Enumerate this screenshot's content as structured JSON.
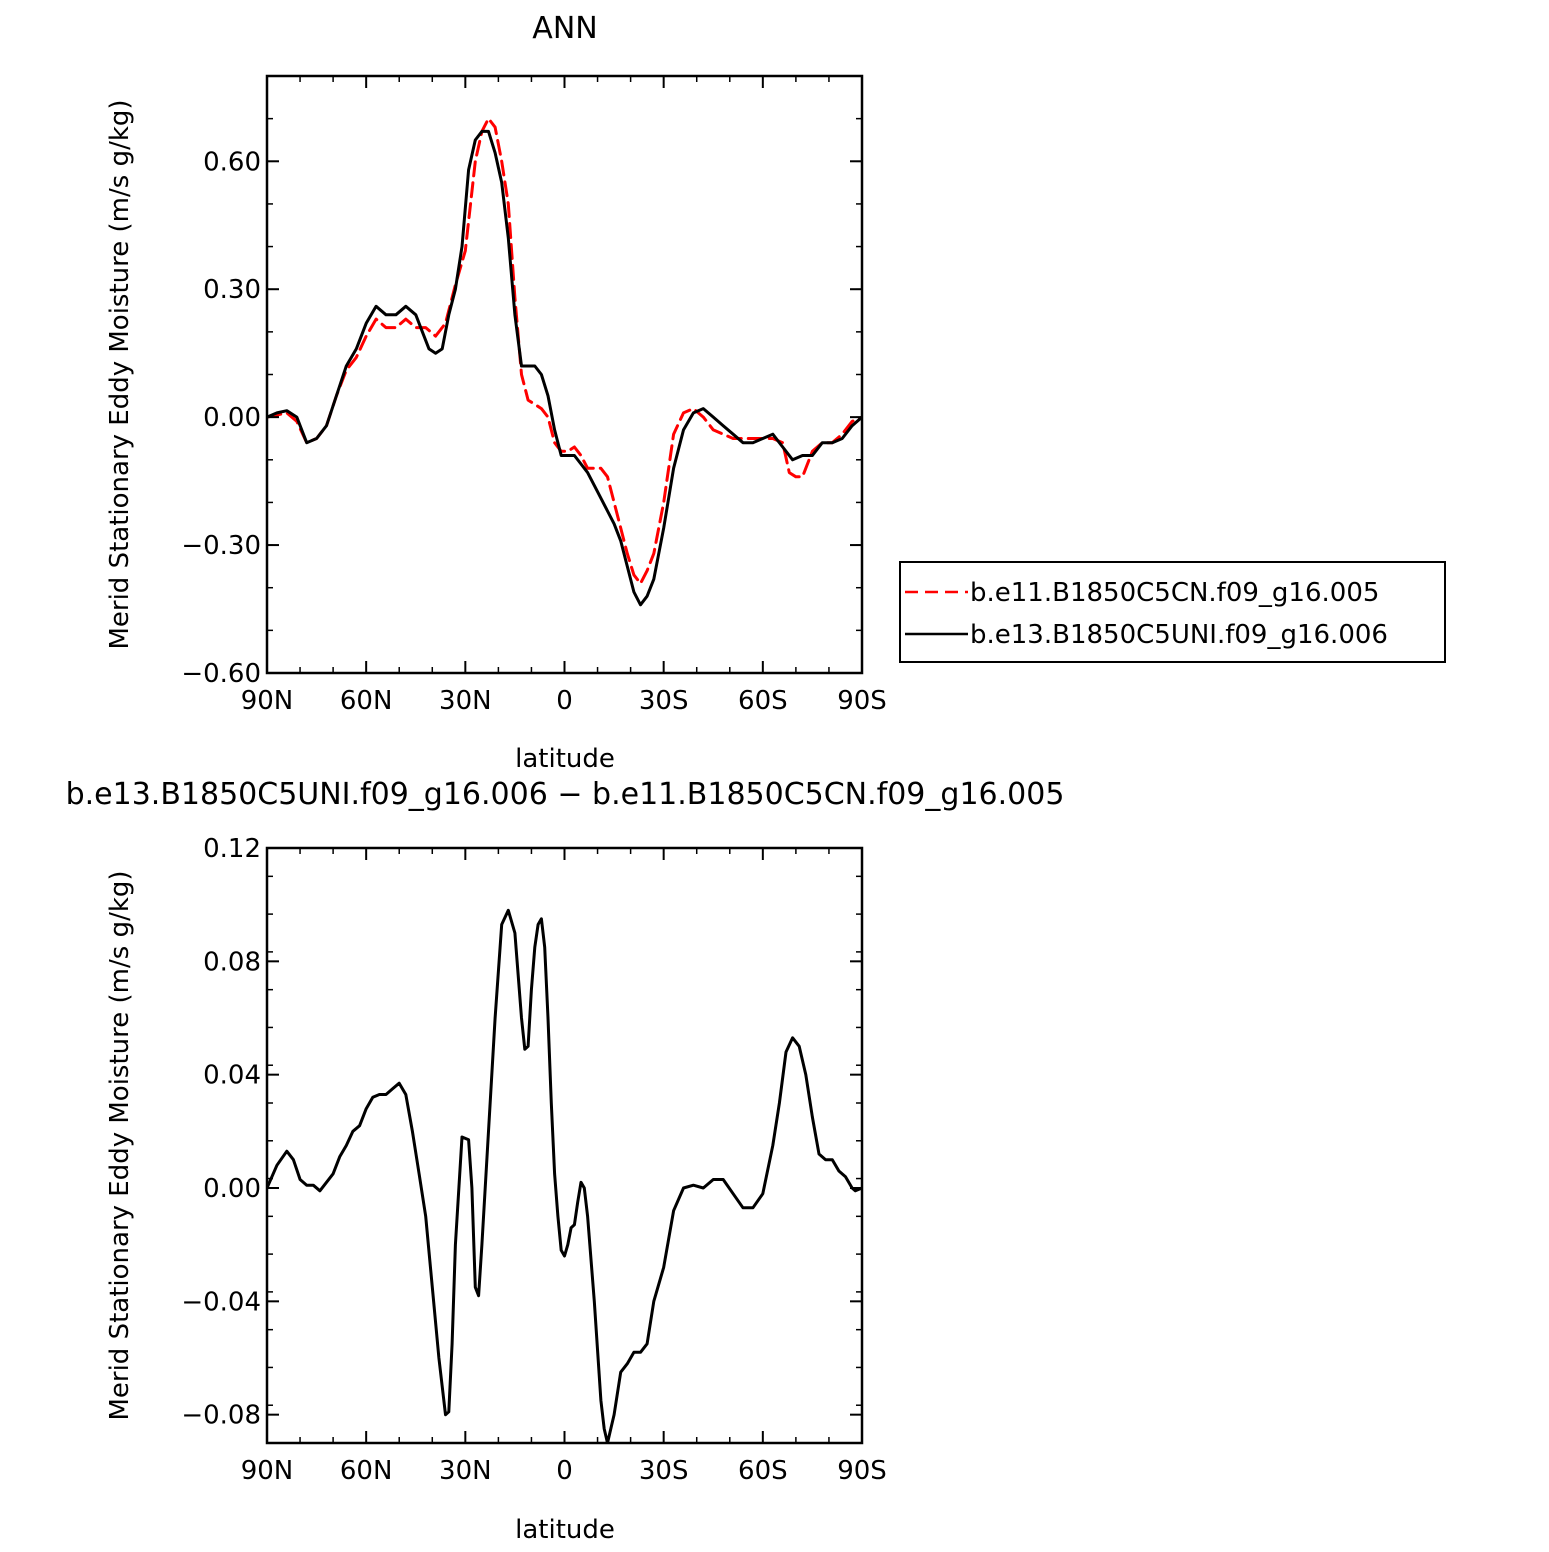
{
  "chart_data": [
    {
      "type": "line",
      "title": "ANN",
      "xlabel": "latitude",
      "ylabel": "Merid Stationary Eddy Moisture (m/s g/kg)",
      "xlim": [
        90,
        -90
      ],
      "ylim": [
        -0.6,
        0.8
      ],
      "x_ticks": [
        90,
        60,
        30,
        0,
        -30,
        -60,
        -90
      ],
      "x_tick_labels": [
        "90N",
        "60N",
        "30N",
        "0",
        "30S",
        "60S",
        "90S"
      ],
      "y_ticks": [
        -0.6,
        -0.3,
        0.0,
        0.3,
        0.6
      ],
      "y_tick_labels": [
        "−0.60",
        "−0.30",
        "0.00",
        "0.30",
        "0.60"
      ],
      "legend_position": "right",
      "series": [
        {
          "name": "b.e11.B1850C5CN.f09_g16.005",
          "color": "#ff0000",
          "dash": "dashed",
          "x": [
            90,
            87,
            84,
            81,
            78,
            75,
            72,
            69,
            66,
            63,
            60,
            57,
            54,
            51,
            48,
            45,
            42,
            39,
            36,
            33,
            30,
            27,
            25,
            23,
            21,
            19,
            17,
            15,
            13,
            11,
            9,
            7,
            5,
            3,
            1,
            -1,
            -3,
            -5,
            -7,
            -9,
            -11,
            -13,
            -15,
            -17,
            -19,
            -21,
            -23,
            -25,
            -27,
            -30,
            -33,
            -36,
            -39,
            -42,
            -45,
            -48,
            -51,
            -54,
            -57,
            -60,
            -63,
            -66,
            -68,
            -70,
            -72,
            -75,
            -78,
            -81,
            -84,
            -87,
            -90
          ],
          "y": [
            0.0,
            0.005,
            0.01,
            -0.01,
            -0.06,
            -0.05,
            -0.02,
            0.05,
            0.11,
            0.14,
            0.19,
            0.23,
            0.21,
            0.21,
            0.23,
            0.21,
            0.21,
            0.19,
            0.22,
            0.31,
            0.39,
            0.6,
            0.67,
            0.7,
            0.68,
            0.6,
            0.5,
            0.28,
            0.1,
            0.04,
            0.03,
            0.02,
            0.0,
            -0.06,
            -0.08,
            -0.08,
            -0.07,
            -0.09,
            -0.12,
            -0.12,
            -0.12,
            -0.14,
            -0.2,
            -0.26,
            -0.32,
            -0.37,
            -0.39,
            -0.36,
            -0.32,
            -0.2,
            -0.04,
            0.01,
            0.02,
            0.0,
            -0.03,
            -0.04,
            -0.05,
            -0.05,
            -0.05,
            -0.05,
            -0.05,
            -0.06,
            -0.13,
            -0.14,
            -0.14,
            -0.08,
            -0.06,
            -0.06,
            -0.04,
            -0.01,
            0.0
          ]
        },
        {
          "name": "b.e13.B1850C5UNI.f09_g16.006",
          "color": "#000000",
          "dash": "solid",
          "x": [
            90,
            87,
            84,
            81,
            78,
            75,
            72,
            69,
            66,
            63,
            60,
            57,
            54,
            51,
            48,
            45,
            43,
            41,
            39,
            37,
            35,
            33,
            31,
            29,
            27,
            25,
            23,
            21,
            19,
            17,
            15,
            13,
            11,
            9,
            7,
            5,
            3,
            1,
            -1,
            -3,
            -5,
            -7,
            -9,
            -11,
            -13,
            -15,
            -17,
            -19,
            -21,
            -23,
            -25,
            -27,
            -30,
            -33,
            -36,
            -39,
            -42,
            -45,
            -48,
            -51,
            -54,
            -57,
            -60,
            -63,
            -66,
            -69,
            -72,
            -75,
            -78,
            -81,
            -84,
            -87,
            -90
          ],
          "y": [
            0.0,
            0.01,
            0.015,
            0.0,
            -0.06,
            -0.05,
            -0.02,
            0.05,
            0.12,
            0.16,
            0.22,
            0.26,
            0.24,
            0.24,
            0.26,
            0.24,
            0.2,
            0.16,
            0.15,
            0.16,
            0.24,
            0.3,
            0.4,
            0.58,
            0.65,
            0.67,
            0.67,
            0.62,
            0.55,
            0.42,
            0.24,
            0.12,
            0.12,
            0.12,
            0.1,
            0.05,
            -0.03,
            -0.09,
            -0.09,
            -0.09,
            -0.11,
            -0.13,
            -0.16,
            -0.19,
            -0.22,
            -0.25,
            -0.29,
            -0.35,
            -0.41,
            -0.44,
            -0.42,
            -0.38,
            -0.26,
            -0.12,
            -0.03,
            0.01,
            0.02,
            0.0,
            -0.02,
            -0.04,
            -0.06,
            -0.06,
            -0.05,
            -0.04,
            -0.07,
            -0.1,
            -0.09,
            -0.09,
            -0.06,
            -0.06,
            -0.05,
            -0.02,
            0.0
          ]
        }
      ]
    },
    {
      "type": "line",
      "title": "b.e13.B1850C5UNI.f09_g16.006 − b.e11.B1850C5CN.f09_g16.005",
      "xlabel": "latitude",
      "ylabel": "Merid Stationary Eddy Moisture (m/s g/kg)",
      "xlim": [
        90,
        -90
      ],
      "ylim": [
        -0.09,
        0.12
      ],
      "x_ticks": [
        90,
        60,
        30,
        0,
        -30,
        -60,
        -90
      ],
      "x_tick_labels": [
        "90N",
        "60N",
        "30N",
        "0",
        "30S",
        "60S",
        "90S"
      ],
      "y_ticks": [
        -0.08,
        -0.04,
        0.0,
        0.04,
        0.08,
        0.12
      ],
      "y_tick_labels": [
        "−0.08",
        "−0.04",
        "0.00",
        "0.04",
        "0.08",
        "0.12"
      ],
      "series": [
        {
          "name": "",
          "color": "#000000",
          "dash": "solid",
          "x": [
            90,
            87,
            84,
            82,
            80,
            78,
            76,
            74,
            72,
            70,
            68,
            66,
            64,
            62,
            60,
            58,
            56,
            54,
            52,
            50,
            48,
            46,
            44,
            42,
            40,
            38,
            36,
            35,
            34,
            33,
            31,
            29,
            28,
            27,
            26,
            25,
            23,
            21,
            19,
            17,
            15,
            14,
            13,
            12,
            11,
            10,
            9,
            8,
            7,
            6,
            5,
            4,
            3,
            2,
            1,
            0,
            -1,
            -2,
            -3,
            -4,
            -5,
            -6,
            -7,
            -9,
            -11,
            -12,
            -13,
            -14,
            -15,
            -17,
            -19,
            -21,
            -23,
            -25,
            -27,
            -30,
            -33,
            -36,
            -39,
            -42,
            -45,
            -48,
            -51,
            -54,
            -57,
            -60,
            -63,
            -65,
            -67,
            -69,
            -71,
            -73,
            -75,
            -77,
            -79,
            -81,
            -83,
            -85,
            -87,
            -88,
            -90
          ],
          "y": [
            0.0,
            0.008,
            0.013,
            0.01,
            0.003,
            0.001,
            0.001,
            -0.001,
            0.002,
            0.005,
            0.011,
            0.015,
            0.02,
            0.022,
            0.028,
            0.032,
            0.033,
            0.033,
            0.035,
            0.037,
            0.033,
            0.02,
            0.005,
            -0.01,
            -0.035,
            -0.06,
            -0.08,
            -0.079,
            -0.055,
            -0.02,
            0.018,
            0.017,
            0.0,
            -0.035,
            -0.038,
            -0.02,
            0.02,
            0.06,
            0.093,
            0.098,
            0.09,
            0.075,
            0.06,
            0.049,
            0.05,
            0.07,
            0.085,
            0.093,
            0.095,
            0.085,
            0.06,
            0.03,
            0.005,
            -0.01,
            -0.022,
            -0.024,
            -0.02,
            -0.014,
            -0.013,
            -0.005,
            0.002,
            0.0,
            -0.01,
            -0.04,
            -0.075,
            -0.085,
            -0.09,
            -0.085,
            -0.08,
            -0.065,
            -0.062,
            -0.058,
            -0.058,
            -0.055,
            -0.04,
            -0.028,
            -0.008,
            0.0,
            0.001,
            0.0,
            0.003,
            0.003,
            -0.002,
            -0.007,
            -0.007,
            -0.002,
            0.015,
            0.03,
            0.048,
            0.053,
            0.05,
            0.04,
            0.025,
            0.012,
            0.01,
            0.01,
            0.006,
            0.004,
            0.0,
            -0.001,
            0.0
          ]
        }
      ]
    }
  ],
  "legend": {
    "entries": [
      {
        "label": "b.e11.B1850C5CN.f09_g16.005",
        "color": "#ff0000",
        "dash": "dashed"
      },
      {
        "label": "b.e13.B1850C5UNI.f09_g16.006",
        "color": "#000000",
        "dash": "solid"
      }
    ]
  }
}
